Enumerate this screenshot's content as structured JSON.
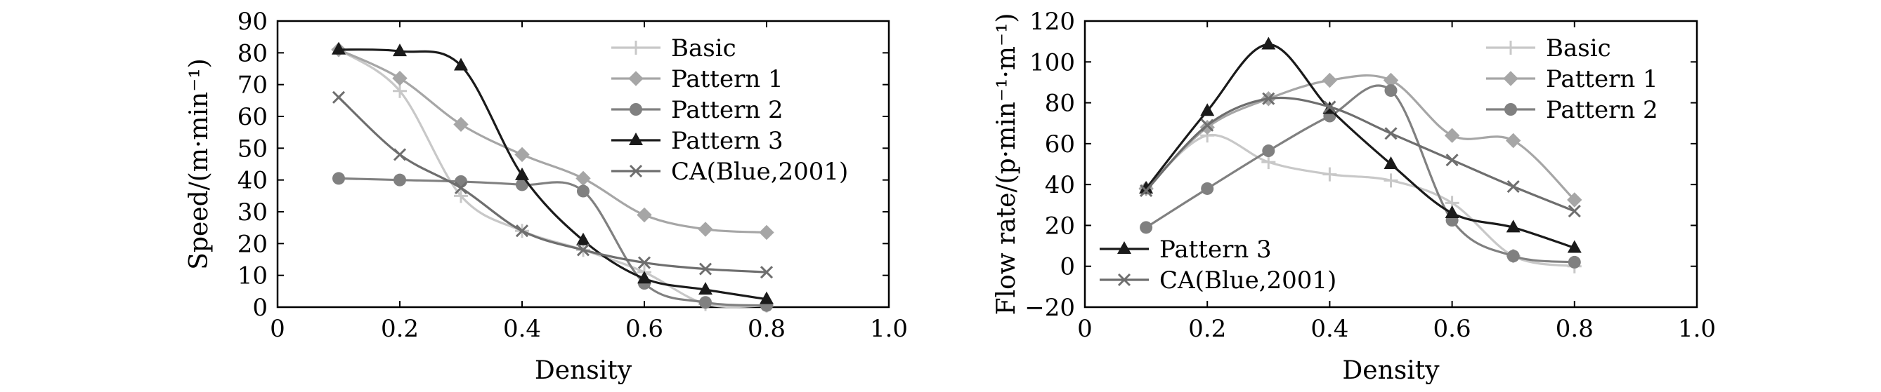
{
  "chart_data": [
    {
      "type": "line",
      "xlabel": "Density",
      "ylabel": "Speed/(m·min⁻¹)",
      "xlim": [
        0,
        1.0
      ],
      "ylim": [
        0,
        90
      ],
      "xticks": [
        "0",
        "0.2",
        "0.4",
        "0.6",
        "0.8",
        "1.0"
      ],
      "yticks": [
        "0",
        "10",
        "20",
        "30",
        "40",
        "50",
        "60",
        "70",
        "80",
        "90"
      ],
      "grid": false,
      "legend_position": "top-right",
      "x": [
        0.1,
        0.2,
        0.3,
        0.4,
        0.5,
        0.6,
        0.7,
        0.8
      ],
      "series": [
        {
          "name": "Basic",
          "color": "#c8c8c8",
          "marker": "plus",
          "values": [
            81,
            68,
            35,
            24,
            18,
            11,
            1,
            0.5
          ]
        },
        {
          "name": "Pattern 1",
          "color": "#a6a6a6",
          "marker": "diamond",
          "values": [
            81,
            72,
            57.5,
            48,
            40.5,
            29,
            24.5,
            23.5
          ]
        },
        {
          "name": "Pattern 2",
          "color": "#808080",
          "marker": "circle",
          "values": [
            40.5,
            40,
            39.5,
            38.5,
            36.5,
            7.5,
            1.5,
            0.5
          ]
        },
        {
          "name": "Pattern 3",
          "color": "#1a1a1a",
          "marker": "triangle",
          "values": [
            81,
            80.5,
            76,
            41.5,
            21,
            9,
            5.5,
            2.5
          ]
        },
        {
          "name": "CA(Blue,2001)",
          "color": "#6e6e6e",
          "marker": "x",
          "values": [
            66,
            48,
            37.5,
            24,
            18,
            14,
            12,
            11
          ]
        }
      ]
    },
    {
      "type": "line",
      "xlabel": "Density",
      "ylabel": "Flow rate/(p·min⁻¹·m⁻¹)",
      "xlim": [
        0,
        1.0
      ],
      "ylim": [
        -20,
        120
      ],
      "xticks": [
        "0",
        "0.2",
        "0.4",
        "0.6",
        "0.8",
        "1.0"
      ],
      "yticks": [
        "−20",
        "0",
        "20",
        "40",
        "60",
        "80",
        "100",
        "120"
      ],
      "grid": false,
      "legend_position": "top-right and bottom-left",
      "x": [
        0.1,
        0.2,
        0.3,
        0.4,
        0.5,
        0.6,
        0.7,
        0.8
      ],
      "series": [
        {
          "name": "Basic",
          "color": "#c8c8c8",
          "marker": "plus",
          "values": [
            38,
            64,
            51,
            45,
            42,
            31,
            5,
            0
          ]
        },
        {
          "name": "Pattern 1",
          "color": "#a6a6a6",
          "marker": "diamond",
          "values": [
            38,
            68,
            82,
            91,
            91,
            64,
            61.5,
            32.5
          ]
        },
        {
          "name": "Pattern 2",
          "color": "#808080",
          "marker": "circle",
          "values": [
            19,
            38,
            56.5,
            73.5,
            86,
            22.5,
            5,
            2
          ]
        },
        {
          "name": "Pattern 3",
          "color": "#1a1a1a",
          "marker": "triangle",
          "values": [
            38,
            76,
            108.5,
            77,
            50,
            26,
            19,
            9
          ]
        },
        {
          "name": "CA(Blue,2001)",
          "color": "#6e6e6e",
          "marker": "x",
          "values": [
            37,
            69,
            82,
            78,
            65,
            52,
            39,
            27
          ]
        }
      ]
    }
  ]
}
